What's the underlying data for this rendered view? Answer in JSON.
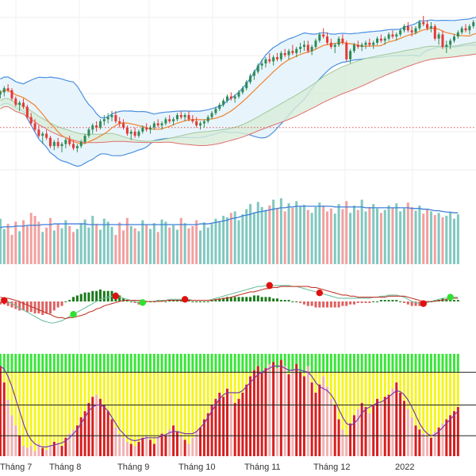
{
  "chart_data": {
    "type": "candlestick-multi-pane",
    "x_labels": [
      "Tháng 7",
      "Tháng 8",
      "Tháng 9",
      "Tháng 10",
      "Tháng 11",
      "Tháng 12",
      "2022"
    ],
    "colors": {
      "up": "#2e8b57",
      "down": "#e53935",
      "bollinger": "#4a90e2",
      "bollinger_fill": "#e8f4fb",
      "ma": "#f08a3c",
      "cloud_fill": "#d8ecd8",
      "cloud_line": "#e07070",
      "support_dotted": "#e05050",
      "vol_up": "#7fc8c0",
      "vol_down": "#f2a0a0",
      "vol_avg": "#3d7fd9",
      "macd_line": "#6fbf9f",
      "signal_line": "#c0392b",
      "hist_up": "#1b7a1b",
      "hist_down": "#e06060",
      "dot_sell": "#e01010",
      "dot_buy": "#30e030",
      "osc_green": "#39e639",
      "osc_yellow": "#f5f51e",
      "osc_red": "#d81e1e",
      "osc_pink": "#f2b2b2",
      "osc_line": "#7a3aa8"
    },
    "candles": [
      [
        88,
        90,
        86,
        89
      ],
      [
        89,
        92,
        87,
        91
      ],
      [
        91,
        93,
        89,
        90
      ],
      [
        90,
        91,
        85,
        86
      ],
      [
        86,
        87,
        82,
        83
      ],
      [
        83,
        85,
        80,
        84
      ],
      [
        84,
        86,
        81,
        82
      ],
      [
        82,
        83,
        76,
        77
      ],
      [
        77,
        79,
        73,
        74
      ],
      [
        74,
        76,
        70,
        71
      ],
      [
        71,
        73,
        67,
        68
      ],
      [
        68,
        70,
        64,
        69
      ],
      [
        69,
        71,
        66,
        67
      ],
      [
        67,
        68,
        62,
        63
      ],
      [
        63,
        66,
        61,
        65
      ],
      [
        65,
        67,
        62,
        63
      ],
      [
        63,
        65,
        60,
        64
      ],
      [
        64,
        67,
        62,
        66
      ],
      [
        66,
        68,
        63,
        64
      ],
      [
        64,
        66,
        61,
        62
      ],
      [
        62,
        64,
        60,
        63
      ],
      [
        63,
        66,
        62,
        65
      ],
      [
        65,
        69,
        64,
        68
      ],
      [
        68,
        72,
        67,
        71
      ],
      [
        71,
        74,
        69,
        73
      ],
      [
        73,
        75,
        70,
        72
      ],
      [
        72,
        76,
        71,
        75
      ],
      [
        75,
        78,
        73,
        76
      ],
      [
        76,
        79,
        74,
        77
      ],
      [
        77,
        80,
        75,
        78
      ],
      [
        78,
        80,
        74,
        75
      ],
      [
        75,
        77,
        72,
        74
      ],
      [
        74,
        76,
        71,
        72
      ],
      [
        72,
        73,
        68,
        69
      ],
      [
        69,
        71,
        66,
        70
      ],
      [
        70,
        72,
        67,
        68
      ],
      [
        68,
        71,
        67,
        70
      ],
      [
        70,
        73,
        69,
        72
      ],
      [
        72,
        74,
        70,
        71
      ],
      [
        71,
        73,
        69,
        72
      ],
      [
        72,
        75,
        71,
        74
      ],
      [
        74,
        76,
        72,
        73
      ],
      [
        73,
        75,
        71,
        74
      ],
      [
        74,
        77,
        73,
        76
      ],
      [
        76,
        78,
        74,
        75
      ],
      [
        75,
        77,
        73,
        76
      ],
      [
        76,
        79,
        75,
        78
      ],
      [
        78,
        80,
        76,
        77
      ],
      [
        77,
        79,
        75,
        78
      ],
      [
        78,
        80,
        75,
        76
      ],
      [
        76,
        78,
        74,
        75
      ],
      [
        75,
        77,
        72,
        73
      ],
      [
        73,
        75,
        71,
        74
      ],
      [
        74,
        76,
        72,
        75
      ],
      [
        75,
        78,
        74,
        77
      ],
      [
        77,
        80,
        76,
        79
      ],
      [
        79,
        82,
        78,
        81
      ],
      [
        81,
        84,
        80,
        83
      ],
      [
        83,
        86,
        82,
        85
      ],
      [
        85,
        88,
        84,
        87
      ],
      [
        87,
        89,
        85,
        86
      ],
      [
        86,
        88,
        84,
        87
      ],
      [
        87,
        90,
        86,
        89
      ],
      [
        89,
        92,
        88,
        91
      ],
      [
        91,
        95,
        90,
        94
      ],
      [
        94,
        98,
        93,
        97
      ],
      [
        97,
        100,
        95,
        99
      ],
      [
        99,
        103,
        98,
        102
      ],
      [
        102,
        105,
        100,
        103
      ],
      [
        103,
        106,
        101,
        105
      ],
      [
        105,
        108,
        103,
        104
      ],
      [
        104,
        107,
        102,
        106
      ],
      [
        106,
        108,
        104,
        105
      ],
      [
        105,
        109,
        104,
        108
      ],
      [
        108,
        110,
        106,
        107
      ],
      [
        107,
        110,
        105,
        109
      ],
      [
        109,
        112,
        107,
        108
      ],
      [
        108,
        111,
        106,
        110
      ],
      [
        110,
        113,
        108,
        111
      ],
      [
        111,
        114,
        109,
        112
      ],
      [
        112,
        114,
        108,
        109
      ],
      [
        109,
        112,
        107,
        111
      ],
      [
        111,
        115,
        110,
        114
      ],
      [
        114,
        118,
        113,
        117
      ],
      [
        117,
        120,
        115,
        116
      ],
      [
        116,
        118,
        112,
        113
      ],
      [
        113,
        115,
        110,
        111
      ],
      [
        111,
        113,
        108,
        112
      ],
      [
        112,
        116,
        111,
        115
      ],
      [
        115,
        117,
        112,
        113
      ],
      [
        113,
        114,
        104,
        105
      ],
      [
        105,
        110,
        103,
        109
      ],
      [
        109,
        113,
        108,
        112
      ],
      [
        112,
        114,
        110,
        111
      ],
      [
        111,
        113,
        109,
        112
      ],
      [
        112,
        114,
        110,
        113
      ],
      [
        113,
        115,
        111,
        112
      ],
      [
        112,
        114,
        110,
        113
      ],
      [
        113,
        116,
        112,
        115
      ],
      [
        115,
        117,
        113,
        114
      ],
      [
        114,
        116,
        112,
        115
      ],
      [
        115,
        118,
        114,
        117
      ],
      [
        117,
        119,
        115,
        116
      ],
      [
        116,
        118,
        114,
        117
      ],
      [
        117,
        120,
        116,
        119
      ],
      [
        119,
        122,
        118,
        121
      ],
      [
        121,
        123,
        118,
        119
      ],
      [
        119,
        121,
        116,
        118
      ],
      [
        118,
        121,
        117,
        120
      ],
      [
        120,
        124,
        119,
        123
      ],
      [
        123,
        126,
        121,
        122
      ],
      [
        122,
        124,
        119,
        120
      ],
      [
        120,
        123,
        118,
        121
      ],
      [
        121,
        122,
        114,
        115
      ],
      [
        115,
        118,
        112,
        117
      ],
      [
        117,
        119,
        110,
        111
      ],
      [
        111,
        114,
        108,
        112
      ],
      [
        112,
        115,
        110,
        114
      ],
      [
        114,
        117,
        113,
        116
      ],
      [
        116,
        119,
        115,
        118
      ],
      [
        118,
        121,
        117,
        120
      ],
      [
        120,
        122,
        118,
        119
      ],
      [
        119,
        122,
        117,
        121
      ],
      [
        121,
        124,
        120,
        123
      ],
      [
        123,
        125,
        121,
        122
      ]
    ],
    "volume": [
      62,
      48,
      55,
      40,
      58,
      45,
      60,
      52,
      70,
      66,
      58,
      44,
      50,
      63,
      46,
      55,
      49,
      60,
      52,
      44,
      48,
      56,
      61,
      50,
      66,
      55,
      47,
      62,
      58,
      51,
      40,
      57,
      46,
      63,
      52,
      49,
      45,
      60,
      54,
      48,
      56,
      44,
      61,
      58,
      50,
      53,
      47,
      63,
      56,
      49,
      52,
      60,
      46,
      57,
      50,
      55,
      62,
      58,
      66,
      64,
      70,
      72,
      60,
      68,
      75,
      82,
      70,
      85,
      78,
      74,
      80,
      88,
      76,
      90,
      72,
      83,
      77,
      86,
      79,
      81,
      74,
      70,
      78,
      84,
      80,
      72,
      76,
      69,
      82,
      75,
      86,
      70,
      80,
      74,
      88,
      72,
      78,
      82,
      76,
      70,
      74,
      80,
      77,
      83,
      72,
      76,
      84,
      78,
      73,
      80,
      69,
      75,
      72,
      67,
      70,
      64,
      66,
      71,
      62,
      68
    ],
    "volume_avg": [
      50,
      51,
      51,
      51,
      52,
      52,
      52,
      53,
      53,
      53,
      53,
      54,
      54,
      54,
      55,
      55,
      55,
      55,
      55,
      55,
      55,
      55,
      55,
      54,
      54,
      54,
      54,
      54,
      54,
      54,
      54,
      54,
      54,
      54,
      54,
      54,
      54,
      54,
      54,
      54,
      54,
      54,
      54,
      54,
      54,
      54,
      54,
      54,
      54,
      54,
      54,
      54,
      55,
      55,
      55,
      56,
      57,
      58,
      59,
      60,
      62,
      63,
      64,
      66,
      67,
      68,
      70,
      71,
      72,
      73,
      74,
      75,
      76,
      77,
      77,
      78,
      78,
      79,
      79,
      79,
      79,
      79,
      79,
      79,
      79,
      79,
      79,
      78,
      78,
      78,
      78,
      78,
      78,
      78,
      78,
      77,
      77,
      77,
      77,
      77,
      77,
      77,
      77,
      77,
      77,
      77,
      77,
      76,
      76,
      76,
      75,
      75,
      74,
      73,
      73,
      72,
      71,
      71,
      70,
      70
    ],
    "macd": [
      2,
      1,
      0,
      -2,
      -4,
      -6,
      -8,
      -10,
      -12,
      -14,
      -16,
      -18,
      -19,
      -20,
      -20,
      -19,
      -18,
      -16,
      -14,
      -12,
      -10,
      -8,
      -6,
      -4,
      -2,
      0,
      2,
      3,
      4,
      5,
      5,
      4,
      3,
      2,
      1,
      0,
      -1,
      -1,
      0,
      0,
      0,
      1,
      1,
      1,
      2,
      2,
      2,
      2,
      2,
      2,
      1,
      1,
      1,
      1,
      1,
      2,
      3,
      4,
      5,
      6,
      7,
      8,
      9,
      10,
      11,
      12,
      13,
      14,
      14,
      15,
      15,
      15,
      15,
      15,
      15,
      15,
      14,
      14,
      13,
      12,
      11,
      10,
      9,
      8,
      7,
      6,
      5,
      4,
      3,
      3,
      3,
      3,
      3,
      3,
      3,
      3,
      3,
      4,
      4,
      5,
      5,
      6,
      6,
      6,
      5,
      4,
      2,
      0,
      -1,
      -2,
      -2,
      -1,
      0,
      1,
      2,
      3,
      3,
      4,
      4,
      4
    ],
    "signal": [
      4,
      3,
      3,
      2,
      1,
      0,
      -2,
      -3,
      -5,
      -6,
      -8,
      -9,
      -11,
      -12,
      -14,
      -15,
      -15,
      -16,
      -15,
      -15,
      -14,
      -13,
      -12,
      -10,
      -9,
      -7,
      -6,
      -4,
      -3,
      -2,
      -1,
      0,
      1,
      1,
      1,
      1,
      1,
      1,
      0,
      0,
      0,
      0,
      0,
      1,
      1,
      1,
      1,
      1,
      1,
      1,
      1,
      1,
      1,
      1,
      1,
      1,
      2,
      2,
      3,
      3,
      4,
      5,
      6,
      7,
      8,
      9,
      9,
      10,
      11,
      12,
      12,
      13,
      13,
      14,
      14,
      14,
      14,
      14,
      14,
      14,
      14,
      13,
      13,
      12,
      11,
      10,
      9,
      8,
      7,
      6,
      6,
      5,
      5,
      4,
      4,
      4,
      4,
      4,
      4,
      4,
      4,
      5,
      5,
      5,
      5,
      5,
      4,
      3,
      2,
      1,
      0,
      0,
      0,
      0,
      1,
      1,
      2,
      2,
      3,
      3
    ],
    "macd_signals": [
      {
        "i": 1,
        "type": "sell"
      },
      {
        "i": 19,
        "type": "buy"
      },
      {
        "i": 30,
        "type": "sell"
      },
      {
        "i": 37,
        "type": "buy"
      },
      {
        "i": 48,
        "type": "sell"
      },
      {
        "i": 70,
        "type": "sell"
      },
      {
        "i": 83,
        "type": "sell"
      },
      {
        "i": 110,
        "type": "sell"
      },
      {
        "i": 117,
        "type": "buy"
      }
    ],
    "oscillator": [
      0.88,
      0.72,
      0.55,
      0.4,
      0.3,
      0.2,
      0.1,
      0.08,
      0.1,
      0.05,
      0.12,
      0.08,
      0.06,
      0.1,
      0.14,
      0.12,
      0.1,
      0.18,
      0.22,
      0.26,
      0.3,
      0.38,
      0.44,
      0.52,
      0.58,
      0.6,
      0.56,
      0.5,
      0.44,
      0.36,
      0.28,
      0.22,
      0.18,
      0.14,
      0.12,
      0.1,
      0.14,
      0.18,
      0.2,
      0.16,
      0.12,
      0.18,
      0.22,
      0.2,
      0.26,
      0.3,
      0.24,
      0.2,
      0.16,
      0.12,
      0.18,
      0.24,
      0.28,
      0.36,
      0.42,
      0.5,
      0.56,
      0.62,
      0.58,
      0.66,
      0.6,
      0.52,
      0.56,
      0.62,
      0.7,
      0.78,
      0.84,
      0.88,
      0.82,
      0.86,
      0.9,
      0.92,
      0.86,
      0.94,
      0.88,
      0.8,
      0.84,
      0.9,
      0.82,
      0.78,
      0.88,
      0.72,
      0.62,
      0.7,
      0.78,
      0.68,
      0.56,
      0.5,
      0.36,
      0.26,
      0.2,
      0.32,
      0.4,
      0.46,
      0.52,
      0.48,
      0.42,
      0.5,
      0.56,
      0.52,
      0.58,
      0.6,
      0.66,
      0.72,
      0.62,
      0.54,
      0.46,
      0.38,
      0.3,
      0.26,
      0.22,
      0.2,
      0.18,
      0.24,
      0.28,
      0.32,
      0.36,
      0.4,
      0.44,
      0.48
    ],
    "oscillator_line": [
      0.88,
      0.85,
      0.78,
      0.68,
      0.56,
      0.44,
      0.32,
      0.22,
      0.16,
      0.12,
      0.1,
      0.09,
      0.09,
      0.1,
      0.11,
      0.12,
      0.13,
      0.15,
      0.18,
      0.22,
      0.26,
      0.32,
      0.38,
      0.44,
      0.48,
      0.5,
      0.5,
      0.48,
      0.44,
      0.38,
      0.32,
      0.26,
      0.22,
      0.18,
      0.16,
      0.15,
      0.16,
      0.17,
      0.18,
      0.18,
      0.18,
      0.18,
      0.2,
      0.21,
      0.23,
      0.24,
      0.24,
      0.23,
      0.22,
      0.22,
      0.22,
      0.24,
      0.28,
      0.32,
      0.38,
      0.44,
      0.5,
      0.56,
      0.6,
      0.62,
      0.62,
      0.62,
      0.62,
      0.64,
      0.68,
      0.72,
      0.76,
      0.8,
      0.82,
      0.84,
      0.86,
      0.88,
      0.88,
      0.88,
      0.86,
      0.84,
      0.84,
      0.85,
      0.84,
      0.83,
      0.82,
      0.78,
      0.72,
      0.68,
      0.66,
      0.64,
      0.6,
      0.54,
      0.46,
      0.38,
      0.32,
      0.3,
      0.32,
      0.36,
      0.42,
      0.46,
      0.48,
      0.5,
      0.52,
      0.53,
      0.55,
      0.58,
      0.61,
      0.64,
      0.63,
      0.6,
      0.55,
      0.48,
      0.4,
      0.32,
      0.26,
      0.22,
      0.2,
      0.21,
      0.24,
      0.28,
      0.32,
      0.36,
      0.4,
      0.44
    ],
    "support_level": 72
  }
}
